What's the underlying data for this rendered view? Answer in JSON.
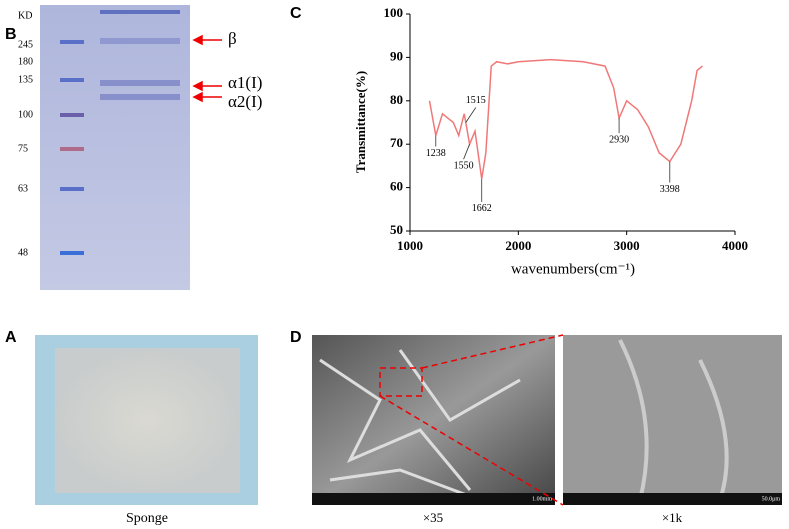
{
  "panels": {
    "A": {
      "label": "A",
      "caption": "Sponge"
    },
    "B": {
      "label": "B",
      "unit": "KD",
      "markers": [
        "245",
        "180",
        "135",
        "100",
        "75",
        "63",
        "48"
      ],
      "bands": [
        "β",
        "α1(I)",
        "α2(I)"
      ]
    },
    "D": {
      "label": "D",
      "captions": [
        "×35",
        "×1k"
      ],
      "scale_bars": [
        "1.00mm",
        "50.0μm"
      ]
    }
  },
  "chart_data": {
    "type": "line",
    "label": "C",
    "xlabel": "wavenumbers(cm⁻¹)",
    "ylabel": "Transmittance(%)",
    "x": [
      1180,
      1238,
      1300,
      1350,
      1400,
      1450,
      1500,
      1515,
      1550,
      1600,
      1662,
      1700,
      1750,
      1800,
      1900,
      2000,
      2300,
      2600,
      2800,
      2880,
      2930,
      3000,
      3100,
      3200,
      3300,
      3398,
      3500,
      3600,
      3650,
      3700
    ],
    "values": [
      80,
      72,
      77,
      76,
      75,
      72,
      77,
      75,
      70,
      73,
      62,
      68,
      88,
      89,
      88.5,
      89,
      89.5,
      89,
      88,
      83,
      76,
      80,
      78,
      74,
      68,
      66,
      70,
      80,
      87,
      88
    ],
    "color": "#f07878",
    "xlim": [
      1000,
      4000
    ],
    "xticks": [
      1000,
      2000,
      3000,
      4000
    ],
    "ylim": [
      50,
      100
    ],
    "yticks": [
      50,
      60,
      70,
      80,
      90,
      100
    ],
    "annotations": [
      {
        "x": 1238,
        "y": 72
      },
      {
        "x": 1515,
        "y": 75
      },
      {
        "x": 1550,
        "y": 70
      },
      {
        "x": 1662,
        "y": 62
      },
      {
        "x": 2930,
        "y": 76
      },
      {
        "x": 3398,
        "y": 66
      }
    ]
  }
}
